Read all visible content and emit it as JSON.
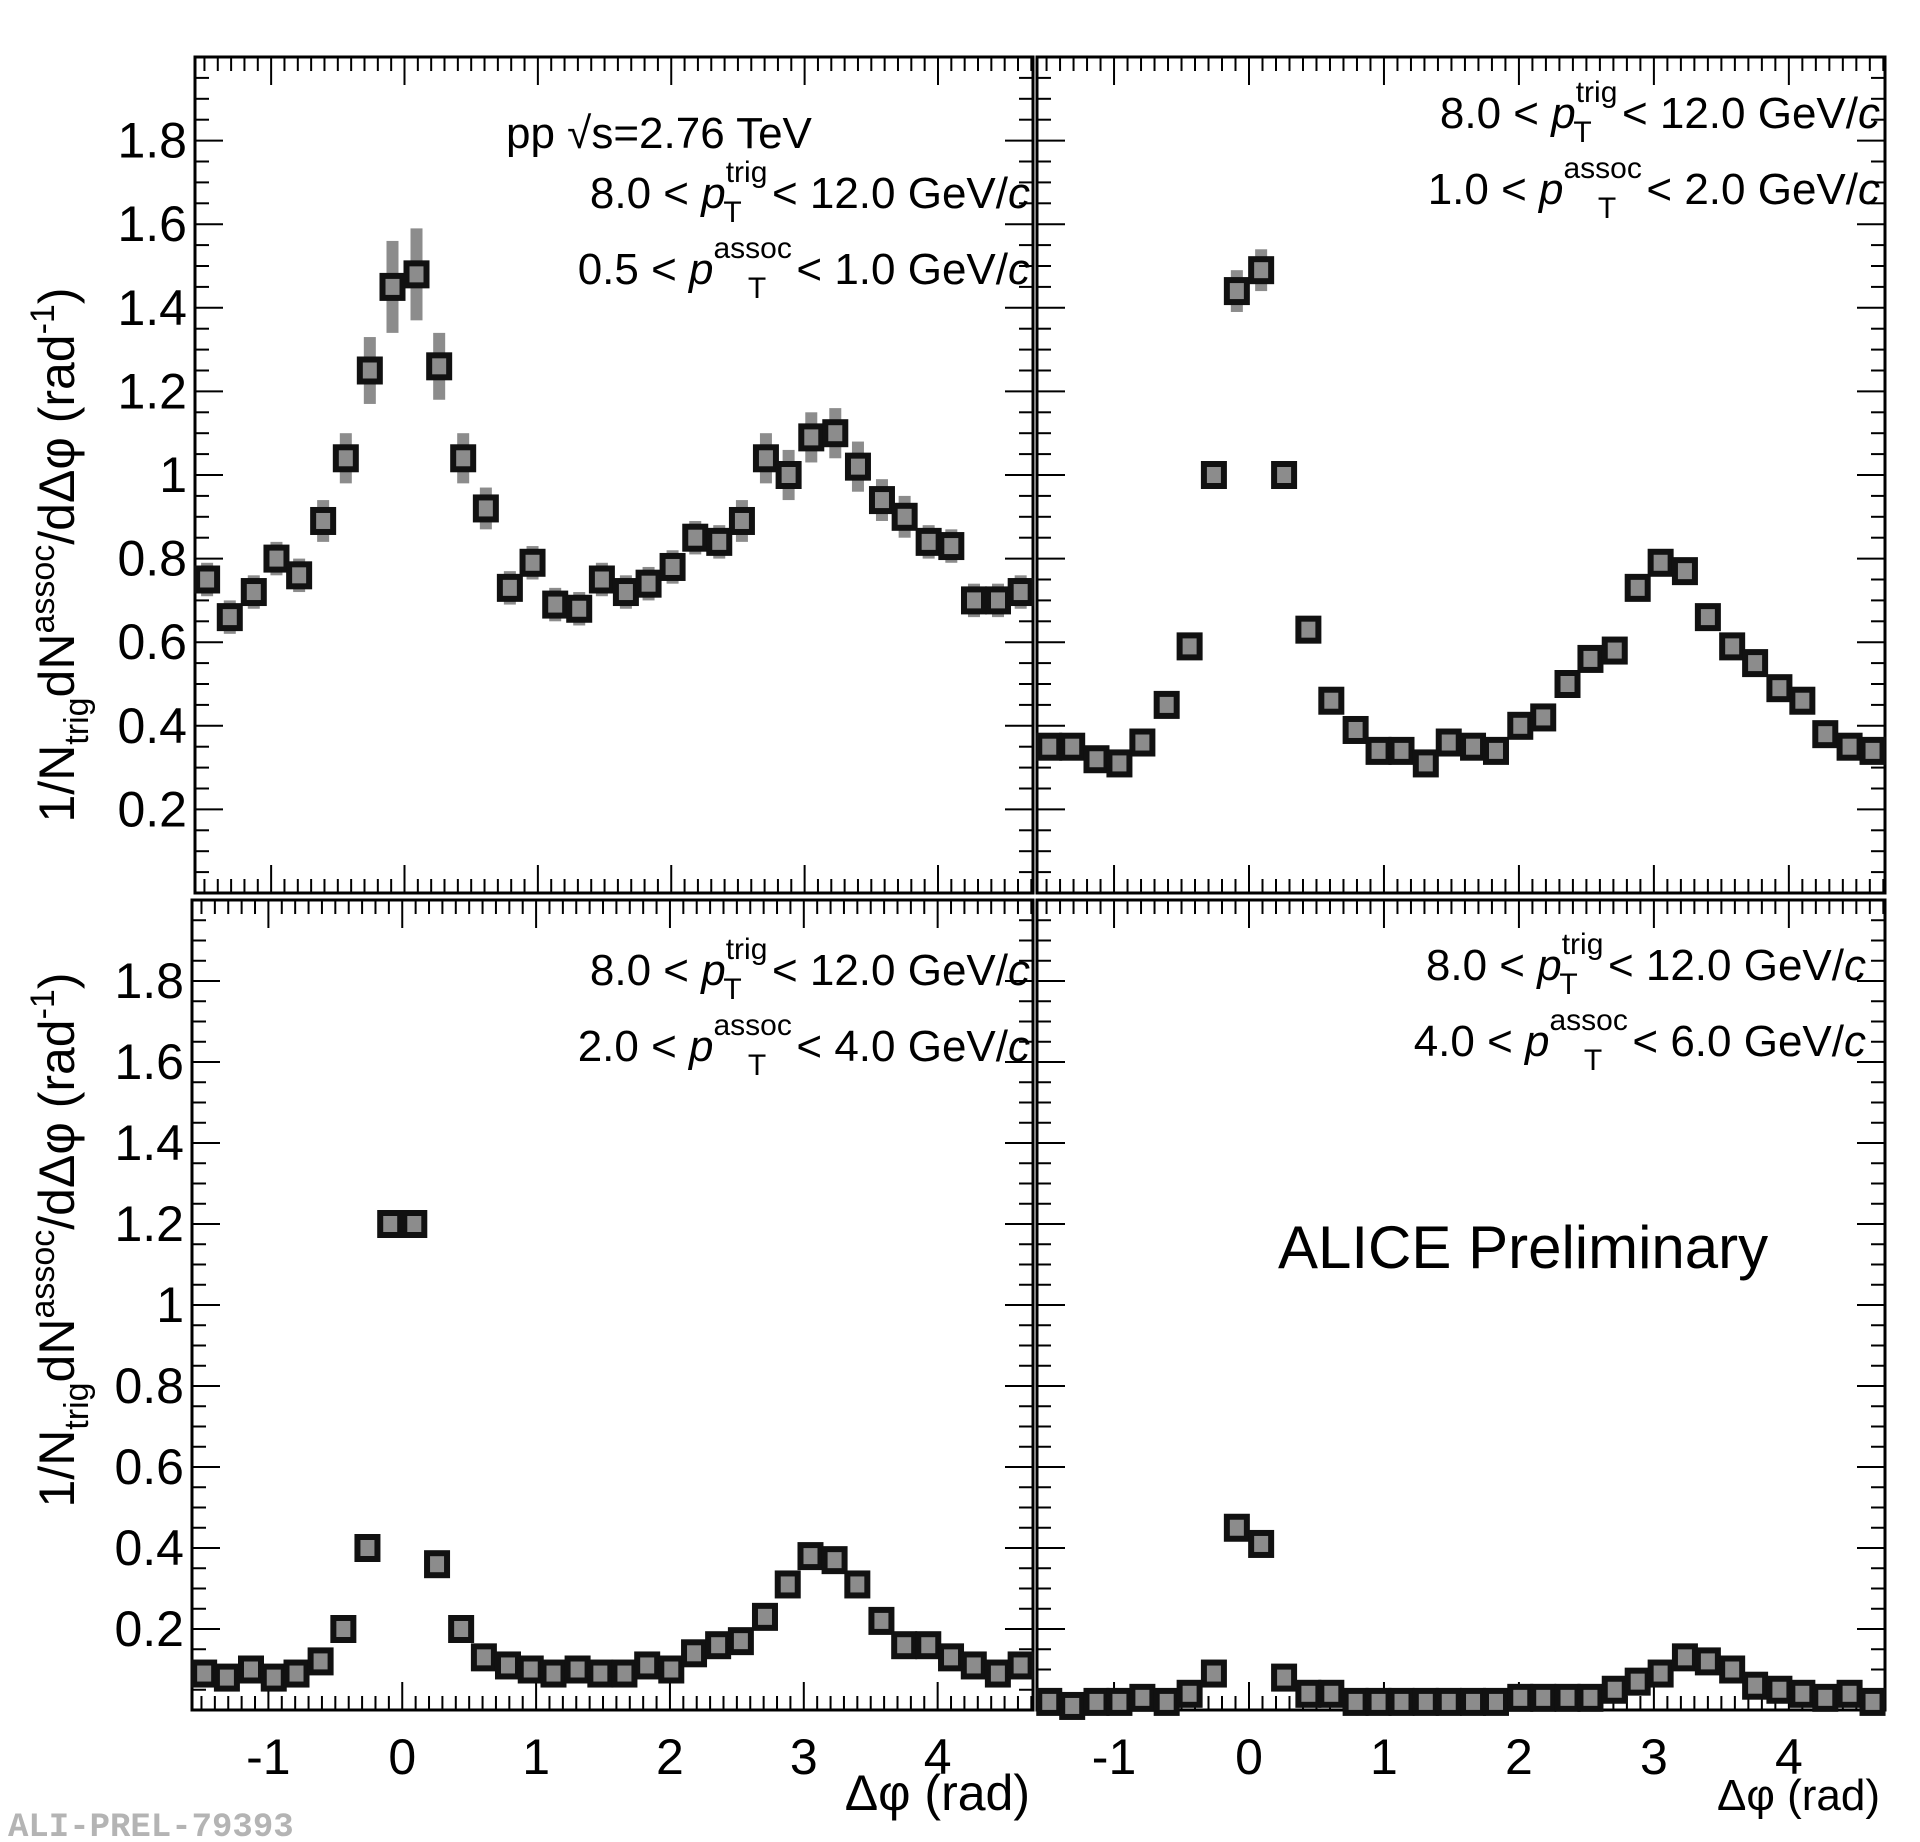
{
  "figure": {
    "x_axis_label": "Δφ (rad)",
    "y_axis_label": "1/N",
    "y_axis_label_sub": "trig",
    "y_axis_label_mid": "dN",
    "y_axis_label_sup": "assoc",
    "y_axis_label_end": "/dΔφ (rad",
    "y_axis_label_unit_sup": "-1",
    "y_axis_label_close": ")",
    "energy_label_prefix": "pp ",
    "energy_label_sqrt": "√",
    "energy_label_value": "s=2.76 TeV",
    "preliminary_label": "ALICE Preliminary",
    "figure_id": "ALI-PREL-79393",
    "marker_fill": "#8c8c8c",
    "marker_edge": "#111111",
    "syst_color": "#8c8c8c"
  },
  "chart_data": [
    {
      "type": "scatter",
      "panel": "top-left",
      "trig_range": [
        "8.0",
        "12.0"
      ],
      "assoc_range": [
        "0.5",
        "1.0"
      ],
      "unit": "GeV/c",
      "xlabel": "Δφ (rad)",
      "ylabel": "1/N_trig dN^assoc/dΔφ (rad^-1)",
      "xlim": [
        -1.5708,
        4.7124
      ],
      "ylim": [
        0.0,
        2.0
      ],
      "x": [
        -1.48,
        -1.31,
        -1.13,
        -0.96,
        -0.79,
        -0.61,
        -0.44,
        -0.26,
        -0.09,
        0.09,
        0.26,
        0.44,
        0.61,
        0.79,
        0.96,
        1.13,
        1.31,
        1.48,
        1.66,
        1.83,
        2.01,
        2.18,
        2.36,
        2.53,
        2.71,
        2.88,
        3.05,
        3.23,
        3.4,
        3.58,
        3.75,
        3.93,
        4.1,
        4.27,
        4.45,
        4.62
      ],
      "y": [
        0.75,
        0.66,
        0.72,
        0.8,
        0.76,
        0.89,
        1.04,
        1.25,
        1.45,
        1.48,
        1.26,
        1.04,
        0.92,
        0.73,
        0.79,
        0.69,
        0.68,
        0.75,
        0.72,
        0.74,
        0.78,
        0.85,
        0.84,
        0.89,
        1.04,
        1.0,
        1.09,
        1.1,
        1.02,
        0.94,
        0.9,
        0.84,
        0.83,
        0.7,
        0.7,
        0.72
      ],
      "syst": [
        0.04,
        0.04,
        0.04,
        0.04,
        0.04,
        0.05,
        0.06,
        0.08,
        0.11,
        0.11,
        0.08,
        0.06,
        0.05,
        0.04,
        0.04,
        0.04,
        0.04,
        0.04,
        0.04,
        0.04,
        0.04,
        0.04,
        0.04,
        0.05,
        0.06,
        0.06,
        0.06,
        0.06,
        0.06,
        0.05,
        0.05,
        0.04,
        0.04,
        0.04,
        0.04,
        0.04
      ]
    },
    {
      "type": "scatter",
      "panel": "top-right",
      "trig_range": [
        "8.0",
        "12.0"
      ],
      "assoc_range": [
        "1.0",
        "2.0"
      ],
      "unit": "GeV/c",
      "xlabel": "Δφ (rad)",
      "ylabel": "1/N_trig dN^assoc/dΔφ (rad^-1)",
      "xlim": [
        -1.5708,
        4.7124
      ],
      "ylim": [
        0.0,
        2.0
      ],
      "x": [
        -1.48,
        -1.31,
        -1.13,
        -0.96,
        -0.79,
        -0.61,
        -0.44,
        -0.26,
        -0.09,
        0.09,
        0.26,
        0.44,
        0.61,
        0.79,
        0.96,
        1.13,
        1.31,
        1.48,
        1.66,
        1.83,
        2.01,
        2.18,
        2.36,
        2.53,
        2.71,
        2.88,
        3.05,
        3.23,
        3.4,
        3.58,
        3.75,
        3.93,
        4.1,
        4.27,
        4.45,
        4.62
      ],
      "y": [
        0.35,
        0.35,
        0.32,
        0.31,
        0.36,
        0.45,
        0.59,
        1.0,
        1.44,
        1.49,
        1.0,
        0.63,
        0.46,
        0.39,
        0.34,
        0.34,
        0.31,
        0.36,
        0.35,
        0.34,
        0.4,
        0.42,
        0.5,
        0.56,
        0.58,
        0.73,
        0.79,
        0.77,
        0.66,
        0.59,
        0.55,
        0.49,
        0.46,
        0.38,
        0.35,
        0.34
      ],
      "syst": [
        0.01,
        0.01,
        0.01,
        0.01,
        0.01,
        0.01,
        0.02,
        0.03,
        0.05,
        0.05,
        0.03,
        0.02,
        0.01,
        0.01,
        0.01,
        0.01,
        0.01,
        0.01,
        0.01,
        0.01,
        0.01,
        0.01,
        0.01,
        0.01,
        0.01,
        0.02,
        0.02,
        0.02,
        0.01,
        0.01,
        0.01,
        0.01,
        0.01,
        0.01,
        0.01,
        0.01
      ]
    },
    {
      "type": "scatter",
      "panel": "bottom-left",
      "trig_range": [
        "8.0",
        "12.0"
      ],
      "assoc_range": [
        "2.0",
        "4.0"
      ],
      "unit": "GeV/c",
      "xlabel": "Δφ (rad)",
      "ylabel": "1/N_trig dN^assoc/dΔφ (rad^-1)",
      "xlim": [
        -1.5708,
        4.7124
      ],
      "ylim": [
        0.0,
        2.0
      ],
      "x": [
        -1.48,
        -1.31,
        -1.13,
        -0.96,
        -0.79,
        -0.61,
        -0.44,
        -0.26,
        -0.09,
        0.09,
        0.26,
        0.44,
        0.61,
        0.79,
        0.96,
        1.13,
        1.31,
        1.48,
        1.66,
        1.83,
        2.01,
        2.18,
        2.36,
        2.53,
        2.71,
        2.88,
        3.05,
        3.23,
        3.4,
        3.58,
        3.75,
        3.93,
        4.1,
        4.27,
        4.45,
        4.62
      ],
      "y": [
        0.09,
        0.08,
        0.1,
        0.08,
        0.09,
        0.12,
        0.2,
        0.4,
        1.2,
        1.2,
        0.36,
        0.2,
        0.13,
        0.11,
        0.1,
        0.09,
        0.1,
        0.09,
        0.09,
        0.11,
        0.1,
        0.14,
        0.16,
        0.17,
        0.23,
        0.31,
        0.38,
        0.37,
        0.31,
        0.22,
        0.16,
        0.16,
        0.13,
        0.11,
        0.09,
        0.11
      ],
      "syst": [
        0.01,
        0.01,
        0.01,
        0.01,
        0.01,
        0.01,
        0.01,
        0.01,
        0.03,
        0.03,
        0.01,
        0.01,
        0.01,
        0.01,
        0.01,
        0.01,
        0.01,
        0.01,
        0.01,
        0.01,
        0.01,
        0.01,
        0.01,
        0.01,
        0.01,
        0.01,
        0.01,
        0.01,
        0.01,
        0.01,
        0.01,
        0.01,
        0.01,
        0.01,
        0.01,
        0.01
      ]
    },
    {
      "type": "scatter",
      "panel": "bottom-right",
      "trig_range": [
        "8.0",
        "12.0"
      ],
      "assoc_range": [
        "4.0",
        "6.0"
      ],
      "unit": "GeV/c",
      "xlabel": "Δφ (rad)",
      "ylabel": "1/N_trig dN^assoc/dΔφ (rad^-1)",
      "xlim": [
        -1.5708,
        4.7124
      ],
      "ylim": [
        0.0,
        2.0
      ],
      "x": [
        -1.48,
        -1.31,
        -1.13,
        -0.96,
        -0.79,
        -0.61,
        -0.44,
        -0.26,
        -0.09,
        0.09,
        0.26,
        0.44,
        0.61,
        0.79,
        0.96,
        1.13,
        1.31,
        1.48,
        1.66,
        1.83,
        2.01,
        2.18,
        2.36,
        2.53,
        2.71,
        2.88,
        3.05,
        3.23,
        3.4,
        3.58,
        3.75,
        3.93,
        4.1,
        4.27,
        4.45,
        4.62
      ],
      "y": [
        0.02,
        0.01,
        0.02,
        0.02,
        0.03,
        0.02,
        0.04,
        0.09,
        0.45,
        0.41,
        0.08,
        0.04,
        0.04,
        0.02,
        0.02,
        0.02,
        0.02,
        0.02,
        0.02,
        0.02,
        0.03,
        0.03,
        0.03,
        0.03,
        0.05,
        0.07,
        0.09,
        0.13,
        0.12,
        0.1,
        0.06,
        0.05,
        0.04,
        0.03,
        0.04,
        0.02
      ],
      "syst": [
        0.005,
        0.005,
        0.005,
        0.005,
        0.005,
        0.005,
        0.005,
        0.005,
        0.01,
        0.01,
        0.005,
        0.005,
        0.005,
        0.005,
        0.005,
        0.005,
        0.005,
        0.005,
        0.005,
        0.005,
        0.005,
        0.005,
        0.005,
        0.005,
        0.005,
        0.005,
        0.005,
        0.005,
        0.005,
        0.005,
        0.005,
        0.005,
        0.005,
        0.005,
        0.005,
        0.005
      ]
    }
  ]
}
